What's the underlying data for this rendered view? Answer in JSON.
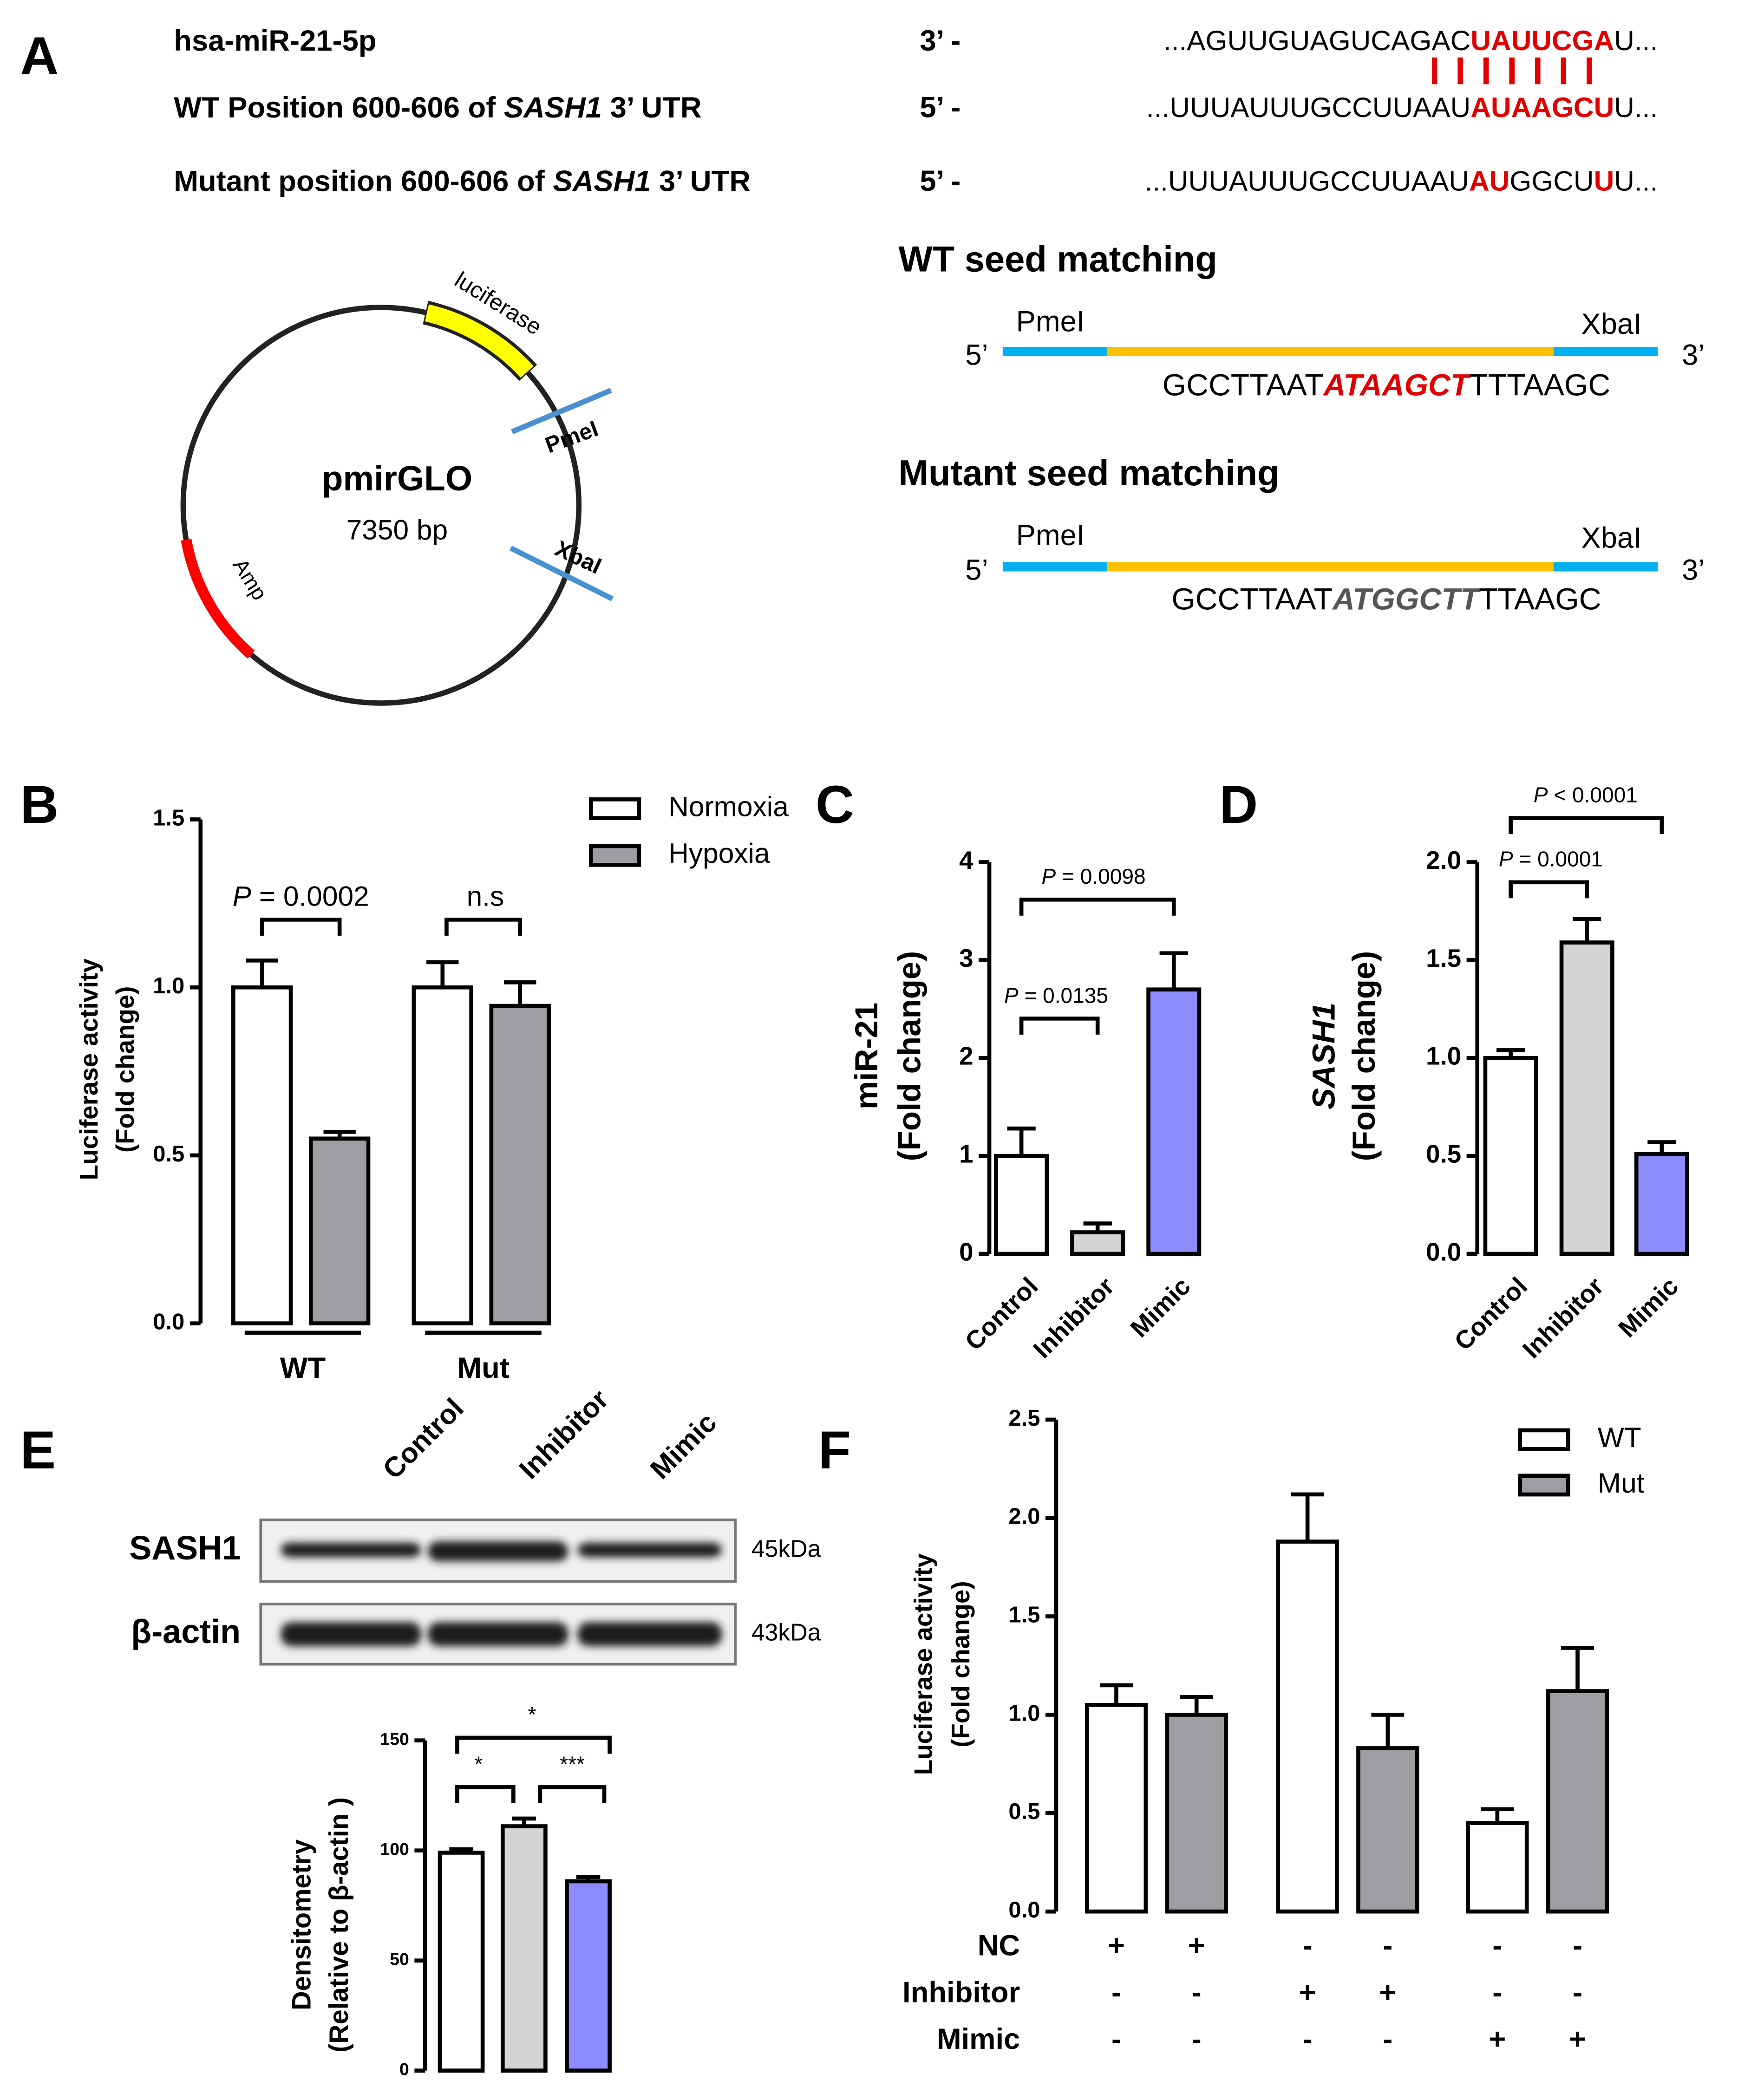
{
  "panel_labels": [
    "A",
    "B",
    "C",
    "D",
    "E",
    "F"
  ],
  "alignment": [
    {
      "name": [
        {
          "text": "hsa-miR-21-5p"
        }
      ],
      "end": "3’ -",
      "seq": [
        {
          "text": "...AGUUGUAGUCAGAC"
        },
        {
          "text": "UAUUCGA",
          "color": "#e00000"
        },
        {
          "text": "U..."
        }
      ]
    },
    {
      "name": [
        {
          "text": "WT Position 600-606 of "
        },
        {
          "text": "SASH1",
          "italic": true
        },
        {
          "text": " 3’ UTR"
        }
      ],
      "end": "5’ -",
      "seq": [
        {
          "text": "...UUUAUUUGCCUUAAU"
        },
        {
          "text": "AUAAGCU",
          "color": "#e00000"
        },
        {
          "text": "U..."
        }
      ]
    },
    {
      "name": [
        {
          "text": "Mutant position 600-606 of "
        },
        {
          "text": "SASH1",
          "italic": true
        },
        {
          "text": " 3’ UTR"
        }
      ],
      "end": "5’ -",
      "seq": [
        {
          "text": "...UUUAUUUGCCUUAAU"
        },
        {
          "text": "AU",
          "color": "#e00000"
        },
        {
          "text": "GGCU"
        },
        {
          "text": "U",
          "color": "#e00000"
        },
        {
          "text": "U..."
        }
      ]
    }
  ],
  "plasmid": {
    "name": "pmirGLO",
    "size": "7350 bp",
    "gene": "luciferase",
    "marker": "Amp",
    "site1": "PmeI",
    "site2": "XbaI"
  },
  "seed": [
    {
      "title": "WT seed matching",
      "five": "5’",
      "three": "3’",
      "left_site": "PmeI",
      "right_site": "XbaI",
      "seq": [
        {
          "text": "GCCTTAAT"
        },
        {
          "text": "ATAAGCT",
          "color": "#e00000",
          "italic": true
        },
        {
          "text": "TTTAAGC"
        }
      ]
    },
    {
      "title": "Mutant seed matching",
      "five": "5’",
      "three": "3’",
      "left_site": "PmeI",
      "right_site": "XbaI",
      "seq": [
        {
          "text": "GCCTTAAT"
        },
        {
          "text": "ATGGCTT",
          "color": "#555555",
          "italic": true
        },
        {
          "text": "TTAAGC"
        }
      ]
    }
  ],
  "blot": {
    "lanes": [
      "Control",
      "Inhibitor",
      "Mimic"
    ],
    "rows": [
      {
        "name": "SASH1",
        "size": "45kDa"
      },
      {
        "name": "β-actin",
        "size": "43kDa"
      }
    ]
  },
  "chart_data": [
    {
      "type": "bar",
      "categories": [
        "WT",
        "Mut"
      ],
      "series": [
        {
          "name": "Normoxia",
          "color": "#ffffff",
          "values": [
            1.0,
            1.0
          ],
          "errors": [
            0.08,
            0.075
          ]
        },
        {
          "name": "Hypoxia",
          "color": "#9e9ea2",
          "values": [
            0.55,
            0.945
          ],
          "errors": [
            0.02,
            0.07
          ]
        }
      ],
      "ylabel": [
        "Luciferase activity",
        "(Fold change)"
      ],
      "ylim": [
        0,
        1.5
      ],
      "yticks": [
        {
          "value": 0,
          "label": "0.0"
        },
        0.5,
        {
          "value": 1,
          "label": "1.0"
        },
        1.5
      ],
      "legend": "upper right",
      "annotations": [
        {
          "italic": "P",
          "text": " = 0.0002"
        },
        {
          "text": "n.s"
        }
      ]
    },
    {
      "type": "bar",
      "categories": [
        "Control",
        "Inhibitor",
        "Mimic"
      ],
      "values": [
        1.0,
        0.22,
        2.7
      ],
      "errors": [
        0.28,
        0.09,
        0.37
      ],
      "colors": [
        "#ffffff",
        "#d4d4d4",
        "#8c8cff"
      ],
      "ylabel": [
        "miR-21",
        "(Fold change)"
      ],
      "ylim": [
        0,
        4
      ],
      "yticks": [
        0,
        1,
        2,
        3,
        4
      ],
      "annotations": [
        {
          "italic": "P",
          "text": " = 0.0135"
        },
        {
          "italic": "P",
          "text": " = 0.0098"
        }
      ]
    },
    {
      "type": "bar",
      "categories": [
        "Control",
        "Inhibitor",
        "Mimic"
      ],
      "values": [
        1.0,
        1.59,
        0.51
      ],
      "errors": [
        0.04,
        0.12,
        0.06
      ],
      "colors": [
        "#ffffff",
        "#d4d4d4",
        "#8c8cff"
      ],
      "ylabel": [
        "SASH1",
        "(Fold change)"
      ],
      "ylim": [
        0,
        2
      ],
      "yticks": [
        {
          "value": 0,
          "label": "0.0"
        },
        0.5,
        {
          "value": 1,
          "label": "1.0"
        },
        1.5,
        {
          "value": 2,
          "label": "2.0"
        }
      ],
      "annotations": [
        {
          "italic": "P",
          "text": " = 0.0001"
        },
        {
          "italic": "P",
          "text": " < 0.0001"
        }
      ]
    },
    {
      "type": "bar",
      "values": [
        99,
        111,
        86
      ],
      "errors": [
        1.5,
        3.5,
        2
      ],
      "colors": [
        "#ffffff",
        "#d4d4d4",
        "#8c8cff"
      ],
      "ylabel": [
        "Densitometry",
        "(Relative to β-actin )"
      ],
      "ylim": [
        0,
        150
      ],
      "yticks": [
        0,
        50,
        100,
        150
      ],
      "annotations": [
        {
          "text": "*"
        },
        {
          "text": "***"
        },
        {
          "text": "*"
        }
      ]
    },
    {
      "type": "bar",
      "series": [
        {
          "name": "WT",
          "color": "#ffffff",
          "values": [
            1.05,
            1.88,
            0.45
          ],
          "errors": [
            0.1,
            0.24,
            0.07
          ]
        },
        {
          "name": "Mut",
          "color": "#9e9ea2",
          "values": [
            1.0,
            0.83,
            1.12
          ],
          "errors": [
            0.09,
            0.17,
            0.22
          ]
        }
      ],
      "ylabel": [
        "Luciferase activity",
        "(Fold change)"
      ],
      "ylim": [
        0,
        2.5
      ],
      "yticks": [
        {
          "value": 0,
          "label": "0.0"
        },
        0.5,
        {
          "value": 1,
          "label": "1.0"
        },
        1.5,
        {
          "value": 2,
          "label": "2.0"
        },
        2.5
      ],
      "legend": "upper right",
      "conditions": [
        {
          "name": "NC",
          "marks": [
            "+",
            "+",
            "-",
            "-",
            "-",
            "-"
          ]
        },
        {
          "name": "Inhibitor",
          "marks": [
            "-",
            "-",
            "+",
            "+",
            "-",
            "-"
          ]
        },
        {
          "name": "Mimic",
          "marks": [
            "-",
            "-",
            "-",
            "-",
            "+",
            "+"
          ]
        }
      ]
    }
  ]
}
